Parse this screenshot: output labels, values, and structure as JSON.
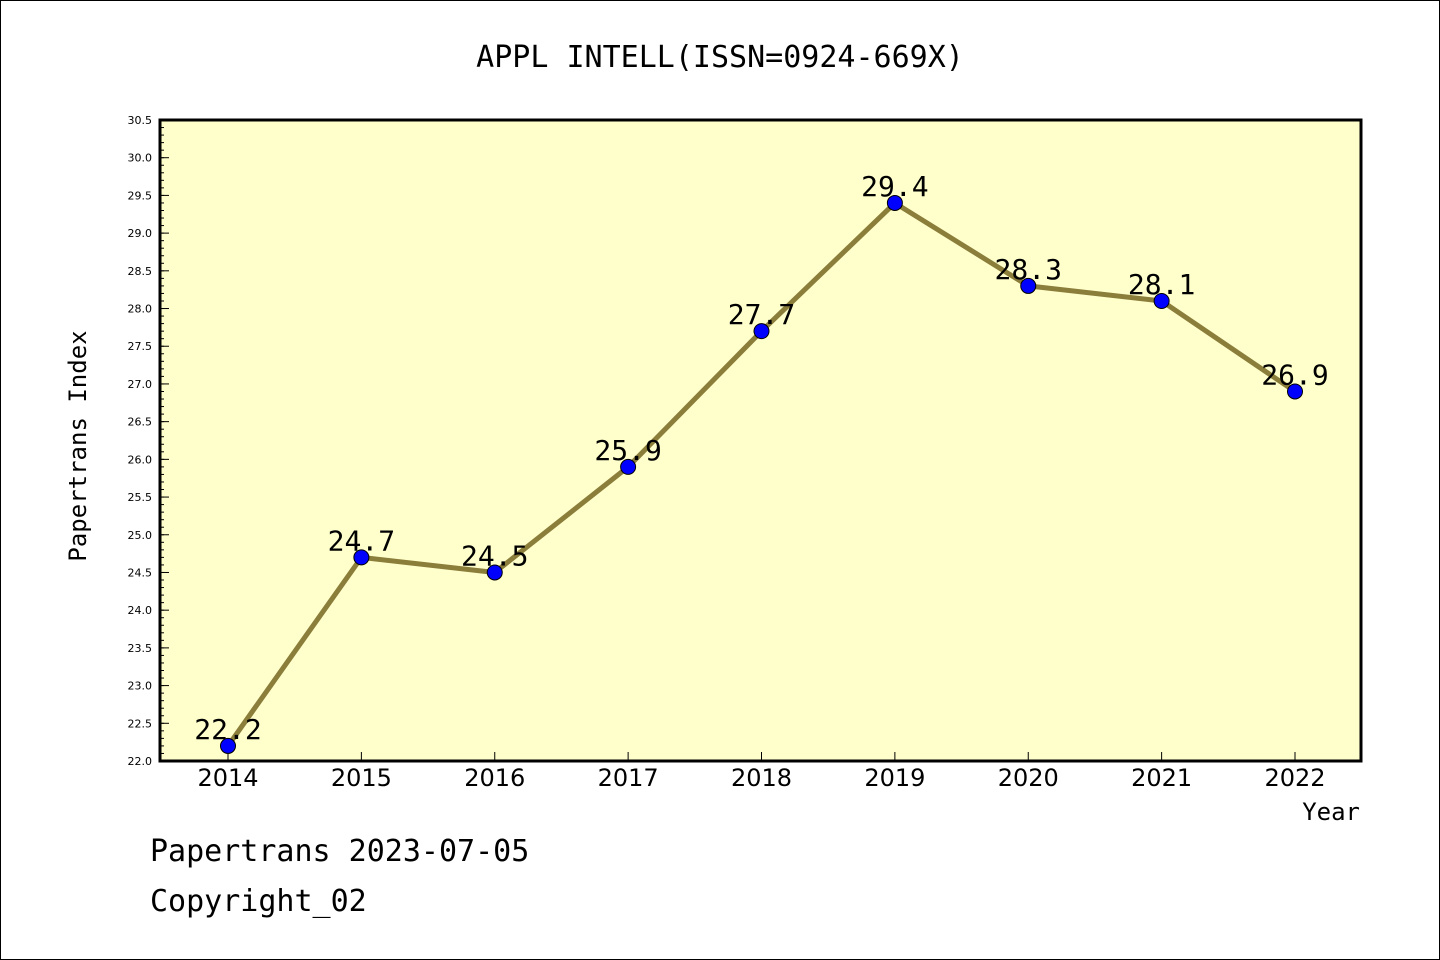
{
  "chart_data": {
    "type": "line",
    "title": "APPL INTELL(ISSN=0924-669X)",
    "xlabel": "Year",
    "ylabel": "Papertrans Index",
    "x": [
      "2014",
      "2015",
      "2016",
      "2017",
      "2018",
      "2019",
      "2020",
      "2021",
      "2022"
    ],
    "series": [
      {
        "values": [
          22.2,
          24.7,
          24.5,
          25.9,
          27.7,
          29.4,
          28.3,
          28.1,
          26.9
        ],
        "labels": [
          "22.2",
          "24.7",
          "24.5",
          "25.9",
          "27.7",
          "29.4",
          "28.3",
          "28.1",
          "26.9"
        ]
      }
    ],
    "ylim": [
      22.0,
      30.5
    ],
    "yticks": [
      "22.0",
      "22.5",
      "23.0",
      "23.5",
      "24.0",
      "24.5",
      "25.0",
      "25.5",
      "26.0",
      "26.5",
      "27.0",
      "27.5",
      "28.0",
      "28.5",
      "29.0",
      "29.5",
      "30.0",
      "30.5"
    ],
    "grid": false,
    "colors": {
      "plot_background": "#ffffcc",
      "line": "#8b7d3a",
      "marker": "#0000ff"
    }
  },
  "footer": {
    "line1": "Papertrans 2023-07-05",
    "line2": "Copyright_02"
  }
}
